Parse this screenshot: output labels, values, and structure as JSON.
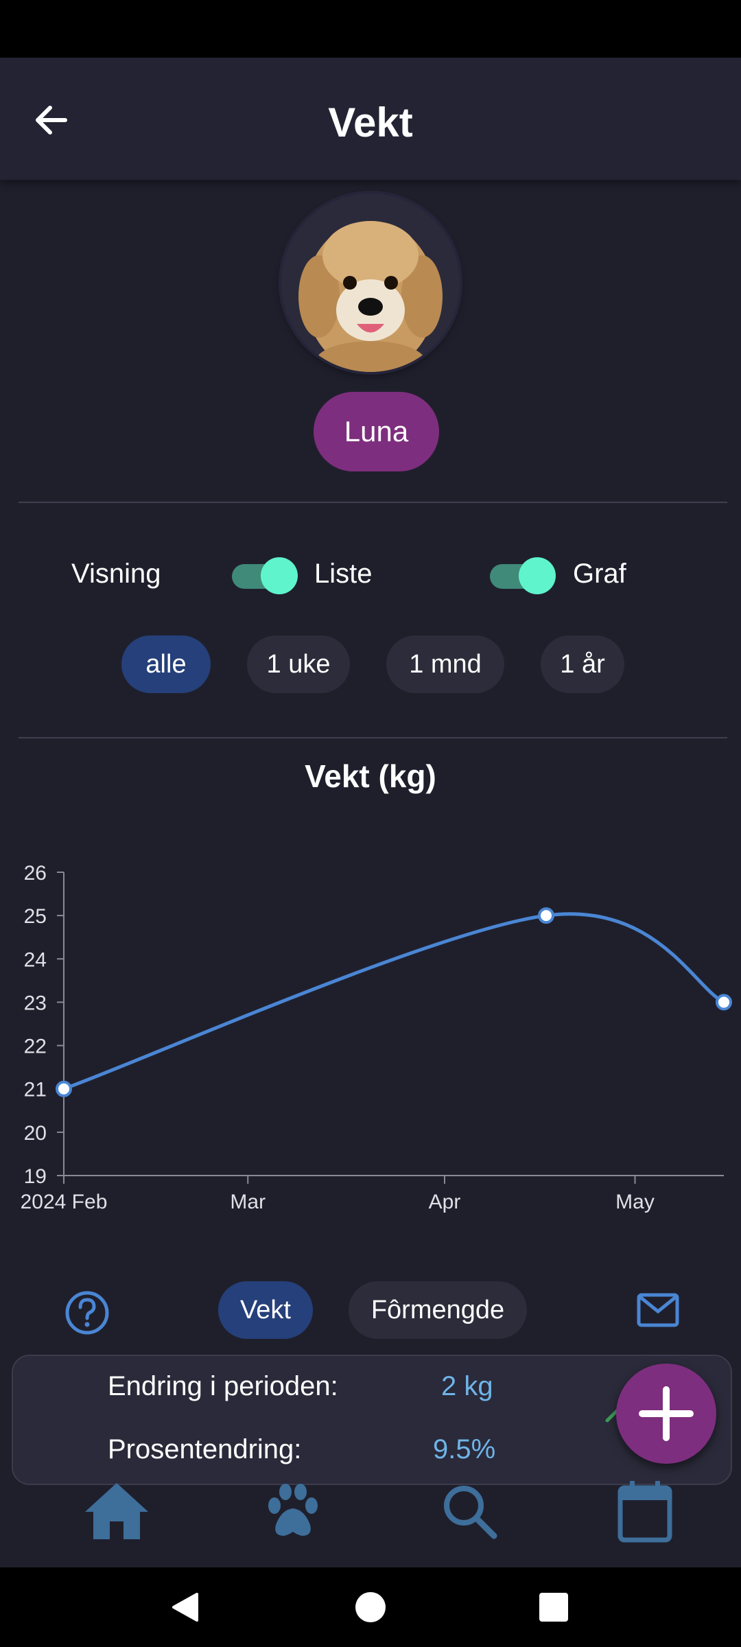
{
  "header": {
    "title": "Vekt",
    "back_icon": "arrow-left-icon"
  },
  "pet": {
    "name": "Luna",
    "avatar": "dog-photo"
  },
  "view": {
    "label": "Visning",
    "list_toggle": {
      "label": "Liste",
      "on": true
    },
    "graph_toggle": {
      "label": "Graf",
      "on": true
    }
  },
  "filters": [
    {
      "label": "alle",
      "active": true
    },
    {
      "label": "1 uke",
      "active": false
    },
    {
      "label": "1 mnd",
      "active": false
    },
    {
      "label": "1 år",
      "active": false
    }
  ],
  "chart_data": {
    "type": "line",
    "title": "Vekt (kg)",
    "x_ticks": [
      "2024 Feb",
      "Mar",
      "Apr",
      "May"
    ],
    "points": [
      {
        "x": "2024-02-01",
        "y": 21
      },
      {
        "x": "2024-04-17",
        "y": 25
      },
      {
        "x": "2024-05-15",
        "y": 23
      }
    ],
    "ylim": [
      19,
      26
    ],
    "y_ticks": [
      19,
      20,
      21,
      22,
      23,
      24,
      25,
      26
    ],
    "line_color": "#4a86d4",
    "grid": false
  },
  "metric_tabs": [
    {
      "label": "Vekt",
      "active": true
    },
    {
      "label": "Fôrmengde",
      "active": false
    }
  ],
  "summary": {
    "change_label": "Endring i perioden:",
    "change_value": "2 kg",
    "percent_label": "Prosentendring:",
    "percent_value": "9.5%",
    "trend_icon": "chevron-up-icon"
  },
  "icons": {
    "help": "help-circle-icon",
    "mail": "mail-icon",
    "fab": "plus-icon"
  },
  "bottom_nav": [
    "home-icon",
    "paw-icon",
    "search-icon",
    "calendar-icon"
  ],
  "colors": {
    "accent_purple": "#7e2e7e",
    "active_blue": "#25407a",
    "toggle_on": "#5ff4cb",
    "nav_icon": "#3e6e9a"
  }
}
